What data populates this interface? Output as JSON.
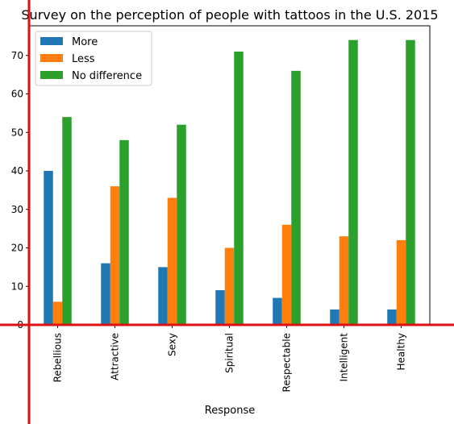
{
  "chart_data": {
    "type": "bar",
    "title": "Survey on the perception of people with tattoos in the U.S. 2015",
    "xlabel": "Response",
    "ylabel": "",
    "categories": [
      "Rebellious",
      "Attractive",
      "Sexy",
      "Spiritual",
      "Respectable",
      "Intelligent",
      "Healthy"
    ],
    "series": [
      {
        "name": "More",
        "color": "#1f77b4",
        "values": [
          40,
          16,
          15,
          9,
          7,
          4,
          4
        ]
      },
      {
        "name": "Less",
        "color": "#ff7f0e",
        "values": [
          6,
          36,
          33,
          20,
          26,
          23,
          22
        ]
      },
      {
        "name": "No difference",
        "color": "#2ca02c",
        "values": [
          54,
          48,
          52,
          71,
          66,
          74,
          74
        ]
      }
    ],
    "ylim": [
      0,
      77.7
    ],
    "yticks": [
      0,
      10,
      20,
      30,
      40,
      50,
      60,
      70
    ],
    "legend_position": "top-left",
    "grid": false,
    "annotation_lines_color": "#dd1111"
  }
}
